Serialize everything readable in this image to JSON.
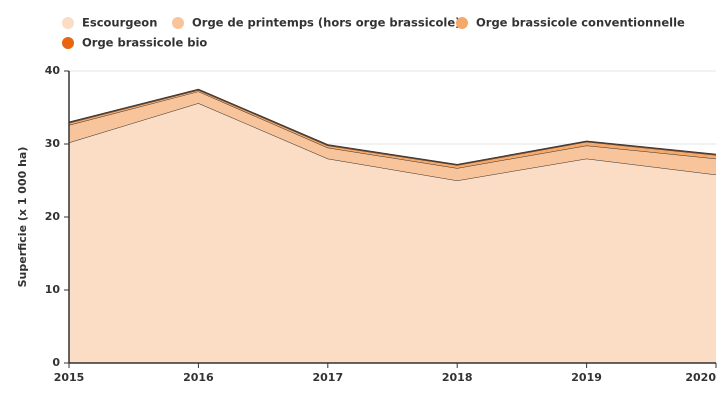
{
  "chart_data": {
    "type": "stacked-area",
    "y_label": "Superficie (x 1 000 ha)",
    "categories": [
      "2015",
      "2016",
      "2017",
      "2018",
      "2019",
      "2020"
    ],
    "series": [
      {
        "name": "Escourgeon",
        "color": "#fbdcc4",
        "values": [
          30.2,
          35.6,
          28.0,
          25.0,
          28.0,
          25.8
        ]
      },
      {
        "name": "Orge de printemps (hors orge brassicole)",
        "color": "#f8c49b",
        "values": [
          2.4,
          1.6,
          1.5,
          1.7,
          1.8,
          2.2
        ]
      },
      {
        "name": "Orge brassicole conventionnelle",
        "color": "#f4a96b",
        "values": [
          0.3,
          0.2,
          0.3,
          0.4,
          0.5,
          0.5
        ]
      },
      {
        "name": "Orge brassicole bio",
        "color": "#e8650f",
        "values": [
          0.1,
          0.1,
          0.1,
          0.1,
          0.1,
          0.1
        ]
      }
    ],
    "ylim": [
      0,
      40
    ],
    "yticks": [
      0,
      10,
      20,
      30,
      40
    ],
    "grid": true
  }
}
